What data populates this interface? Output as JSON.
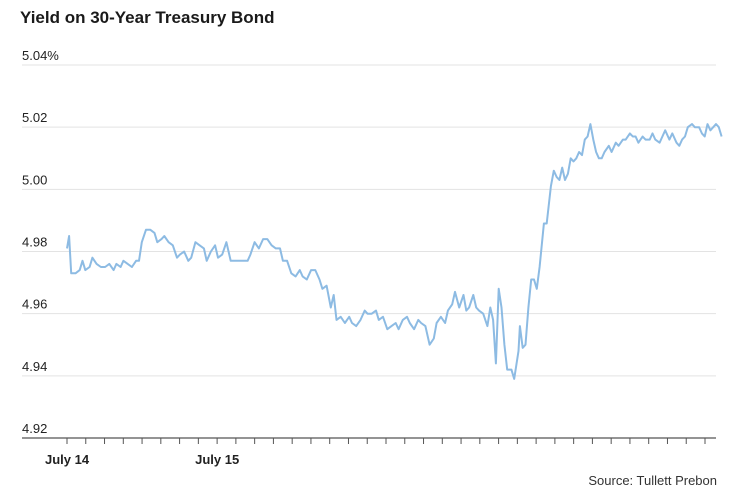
{
  "chart_data": {
    "type": "line",
    "title": "Yield on 30-Year Treasury Bond",
    "source": "Source: Tullett Prebon",
    "ylim": [
      4.92,
      5.04
    ],
    "yticks": [
      4.92,
      4.94,
      4.96,
      4.98,
      5.0,
      5.02,
      5.04
    ],
    "ytick_labels": [
      "4.92",
      "4.94",
      "4.96",
      "4.98",
      "5.00",
      "5.02",
      "5.04%"
    ],
    "xlim": [
      0,
      46
    ],
    "xticks": [
      0,
      1.33,
      2.66,
      3.99,
      5.32,
      6.65,
      7.98,
      9.31,
      10.64,
      11.97,
      13.3,
      14.63,
      15.96,
      17.29,
      18.62,
      19.95,
      21.28,
      22.61,
      23.94,
      25.27,
      26.6,
      27.93,
      29.26,
      30.59,
      31.92,
      33.25,
      34.58,
      35.91,
      37.24,
      38.57,
      39.9,
      41.23,
      42.56,
      43.89,
      45.22
    ],
    "xtick_labels": [
      {
        "pos": 0,
        "text": "July 14"
      },
      {
        "pos": 10.64,
        "text": "July 15"
      }
    ],
    "grid": true,
    "colors": {
      "line": "#8dbbe3",
      "grid": "#e3e3e3",
      "axis": "#555555"
    },
    "series": [
      {
        "values": [
          [
            0.0,
            4.981
          ],
          [
            0.15,
            4.985
          ],
          [
            0.3,
            4.973
          ],
          [
            0.6,
            4.973
          ],
          [
            0.9,
            4.974
          ],
          [
            1.1,
            4.977
          ],
          [
            1.3,
            4.974
          ],
          [
            1.6,
            4.975
          ],
          [
            1.8,
            4.978
          ],
          [
            2.1,
            4.976
          ],
          [
            2.4,
            4.975
          ],
          [
            2.7,
            4.975
          ],
          [
            3.0,
            4.976
          ],
          [
            3.3,
            4.974
          ],
          [
            3.5,
            4.976
          ],
          [
            3.8,
            4.975
          ],
          [
            4.0,
            4.977
          ],
          [
            4.3,
            4.976
          ],
          [
            4.6,
            4.975
          ],
          [
            4.9,
            4.977
          ],
          [
            5.1,
            4.977
          ],
          [
            5.3,
            4.983
          ],
          [
            5.6,
            4.987
          ],
          [
            5.9,
            4.987
          ],
          [
            6.2,
            4.986
          ],
          [
            6.4,
            4.983
          ],
          [
            6.7,
            4.984
          ],
          [
            6.9,
            4.985
          ],
          [
            7.2,
            4.983
          ],
          [
            7.5,
            4.982
          ],
          [
            7.8,
            4.978
          ],
          [
            8.0,
            4.979
          ],
          [
            8.3,
            4.98
          ],
          [
            8.6,
            4.977
          ],
          [
            8.8,
            4.978
          ],
          [
            9.1,
            4.983
          ],
          [
            9.4,
            4.982
          ],
          [
            9.7,
            4.981
          ],
          [
            9.9,
            4.977
          ],
          [
            10.2,
            4.98
          ],
          [
            10.5,
            4.982
          ],
          [
            10.7,
            4.978
          ],
          [
            11.0,
            4.979
          ],
          [
            11.3,
            4.983
          ],
          [
            11.6,
            4.977
          ],
          [
            11.9,
            4.977
          ],
          [
            12.2,
            4.977
          ],
          [
            12.5,
            4.977
          ],
          [
            12.8,
            4.977
          ],
          [
            13.0,
            4.979
          ],
          [
            13.3,
            4.983
          ],
          [
            13.6,
            4.981
          ],
          [
            13.9,
            4.984
          ],
          [
            14.2,
            4.984
          ],
          [
            14.5,
            4.982
          ],
          [
            14.8,
            4.981
          ],
          [
            15.1,
            4.981
          ],
          [
            15.3,
            4.977
          ],
          [
            15.6,
            4.977
          ],
          [
            15.9,
            4.973
          ],
          [
            16.2,
            4.972
          ],
          [
            16.5,
            4.974
          ],
          [
            16.7,
            4.972
          ],
          [
            17.0,
            4.971
          ],
          [
            17.3,
            4.974
          ],
          [
            17.6,
            4.974
          ],
          [
            17.9,
            4.971
          ],
          [
            18.1,
            4.968
          ],
          [
            18.4,
            4.969
          ],
          [
            18.7,
            4.962
          ],
          [
            18.9,
            4.966
          ],
          [
            19.1,
            4.958
          ],
          [
            19.4,
            4.959
          ],
          [
            19.7,
            4.957
          ],
          [
            20.0,
            4.959
          ],
          [
            20.2,
            4.957
          ],
          [
            20.5,
            4.956
          ],
          [
            20.8,
            4.958
          ],
          [
            21.1,
            4.961
          ],
          [
            21.3,
            4.96
          ],
          [
            21.6,
            4.96
          ],
          [
            21.9,
            4.961
          ],
          [
            22.1,
            4.958
          ],
          [
            22.4,
            4.959
          ],
          [
            22.7,
            4.955
          ],
          [
            23.0,
            4.956
          ],
          [
            23.3,
            4.957
          ],
          [
            23.5,
            4.955
          ],
          [
            23.8,
            4.958
          ],
          [
            24.1,
            4.959
          ],
          [
            24.3,
            4.957
          ],
          [
            24.6,
            4.955
          ],
          [
            24.9,
            4.958
          ],
          [
            25.1,
            4.957
          ],
          [
            25.4,
            4.956
          ],
          [
            25.7,
            4.95
          ],
          [
            26.0,
            4.952
          ],
          [
            26.2,
            4.957
          ],
          [
            26.5,
            4.959
          ],
          [
            26.8,
            4.957
          ],
          [
            27.0,
            4.961
          ],
          [
            27.3,
            4.963
          ],
          [
            27.5,
            4.967
          ],
          [
            27.8,
            4.962
          ],
          [
            28.1,
            4.966
          ],
          [
            28.3,
            4.961
          ],
          [
            28.5,
            4.962
          ],
          [
            28.8,
            4.966
          ],
          [
            29.0,
            4.962
          ],
          [
            29.2,
            4.961
          ],
          [
            29.5,
            4.96
          ],
          [
            29.8,
            4.956
          ],
          [
            30.0,
            4.962
          ],
          [
            30.2,
            4.958
          ],
          [
            30.4,
            4.944
          ],
          [
            30.6,
            4.968
          ],
          [
            30.8,
            4.962
          ],
          [
            31.0,
            4.95
          ],
          [
            31.2,
            4.942
          ],
          [
            31.5,
            4.942
          ],
          [
            31.7,
            4.939
          ],
          [
            32.0,
            4.948
          ],
          [
            32.1,
            4.956
          ],
          [
            32.3,
            4.949
          ],
          [
            32.5,
            4.95
          ],
          [
            32.7,
            4.962
          ],
          [
            32.9,
            4.971
          ],
          [
            33.1,
            4.971
          ],
          [
            33.3,
            4.968
          ],
          [
            33.5,
            4.975
          ],
          [
            33.8,
            4.989
          ],
          [
            34.0,
            4.989
          ],
          [
            34.3,
            5.001
          ],
          [
            34.5,
            5.006
          ],
          [
            34.7,
            5.004
          ],
          [
            34.9,
            5.003
          ],
          [
            35.1,
            5.007
          ],
          [
            35.3,
            5.003
          ],
          [
            35.5,
            5.005
          ],
          [
            35.7,
            5.01
          ],
          [
            35.9,
            5.009
          ],
          [
            36.1,
            5.01
          ],
          [
            36.3,
            5.012
          ],
          [
            36.5,
            5.011
          ],
          [
            36.7,
            5.016
          ],
          [
            36.9,
            5.017
          ],
          [
            37.1,
            5.021
          ],
          [
            37.3,
            5.016
          ],
          [
            37.5,
            5.012
          ],
          [
            37.7,
            5.01
          ],
          [
            37.9,
            5.01
          ],
          [
            38.1,
            5.012
          ],
          [
            38.4,
            5.014
          ],
          [
            38.6,
            5.012
          ],
          [
            38.9,
            5.015
          ],
          [
            39.1,
            5.014
          ],
          [
            39.4,
            5.016
          ],
          [
            39.6,
            5.016
          ],
          [
            39.9,
            5.018
          ],
          [
            40.1,
            5.017
          ],
          [
            40.3,
            5.017
          ],
          [
            40.5,
            5.015
          ],
          [
            40.8,
            5.017
          ],
          [
            41.0,
            5.016
          ],
          [
            41.3,
            5.016
          ],
          [
            41.5,
            5.018
          ],
          [
            41.7,
            5.016
          ],
          [
            42.0,
            5.015
          ],
          [
            42.2,
            5.017
          ],
          [
            42.4,
            5.019
          ],
          [
            42.7,
            5.016
          ],
          [
            42.9,
            5.018
          ],
          [
            43.2,
            5.015
          ],
          [
            43.4,
            5.014
          ],
          [
            43.6,
            5.016
          ],
          [
            43.8,
            5.017
          ],
          [
            44.0,
            5.02
          ],
          [
            44.3,
            5.021
          ],
          [
            44.5,
            5.02
          ],
          [
            44.8,
            5.02
          ],
          [
            45.0,
            5.018
          ],
          [
            45.2,
            5.017
          ],
          [
            45.4,
            5.021
          ],
          [
            45.6,
            5.019
          ],
          [
            45.8,
            5.02
          ],
          [
            46.0,
            5.021
          ],
          [
            46.2,
            5.02
          ],
          [
            46.4,
            5.017
          ]
        ]
      }
    ]
  }
}
